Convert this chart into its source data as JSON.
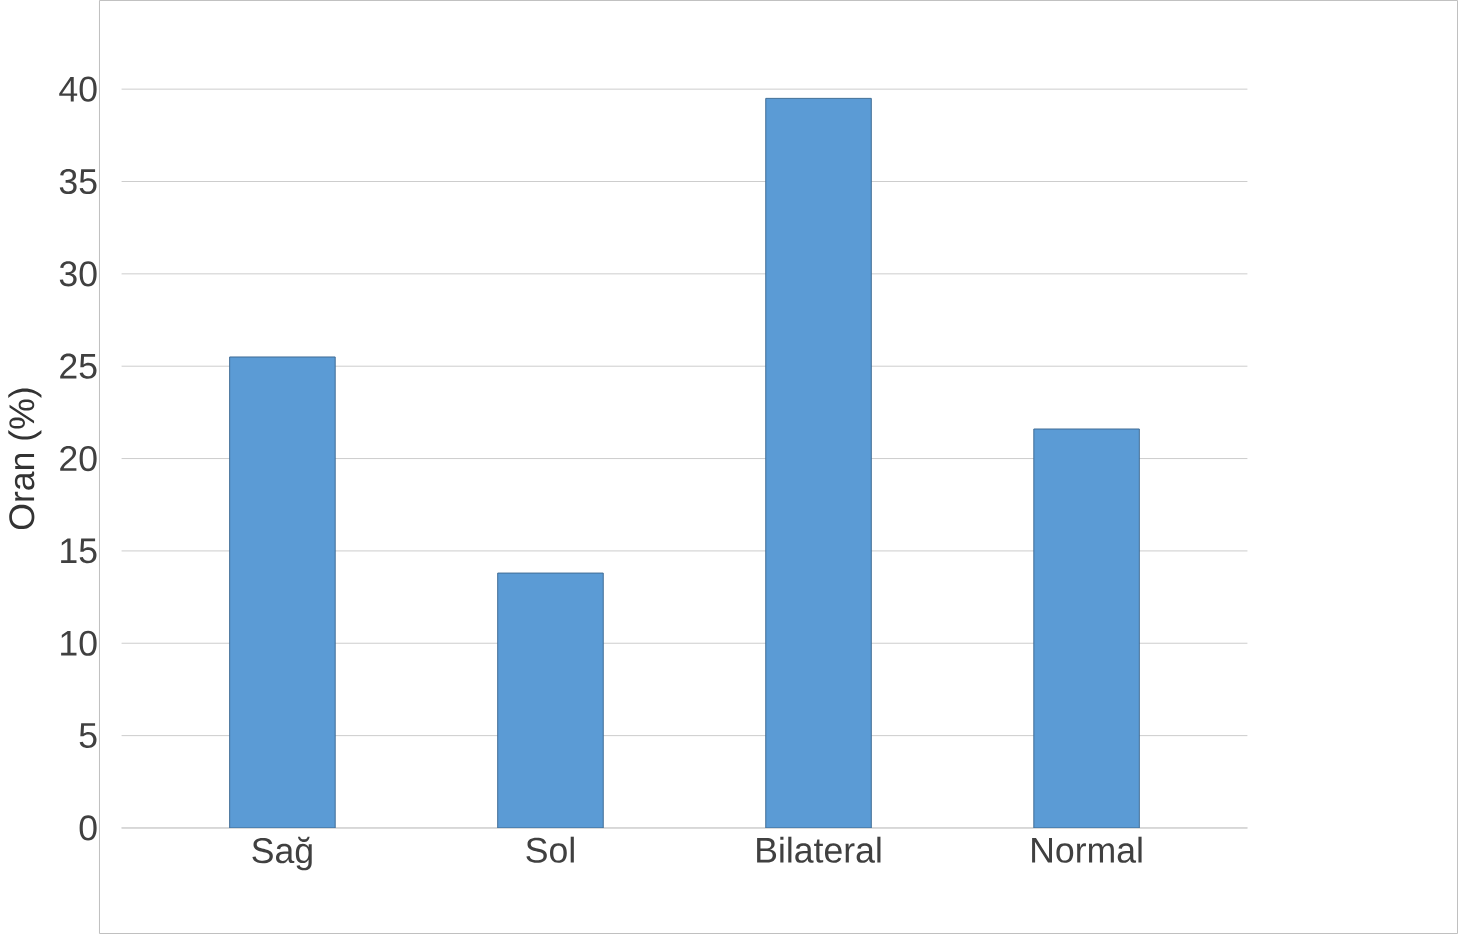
{
  "chart_data": {
    "type": "bar",
    "ylabel": "Oran (%)",
    "categories": [
      "Sağ",
      "Sol",
      "Bilateral",
      "Normal"
    ],
    "values": [
      25.5,
      13.8,
      39.5,
      21.6
    ],
    "color": "#5b9bd5",
    "ylim": [
      0,
      40
    ],
    "yticks": [
      0,
      5,
      10,
      15,
      20,
      25,
      30,
      35,
      40
    ],
    "grid": "y"
  }
}
